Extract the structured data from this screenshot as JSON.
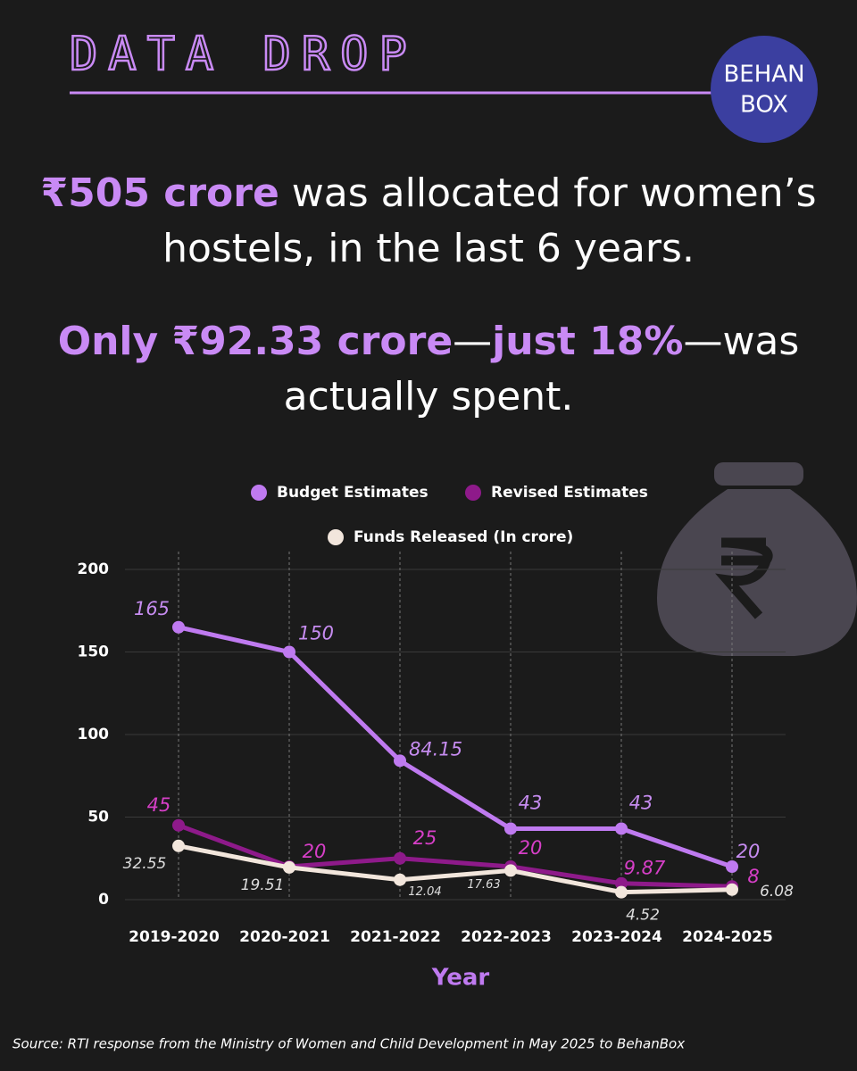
{
  "header": {
    "title": "DATA DROP",
    "logo": [
      "BEHAN",
      "BOX"
    ]
  },
  "headline": [
    [
      {
        "text": "₹505 crore",
        "highlight": true
      },
      {
        "text": " was allocated for women’s hostels, in the last 6 years.",
        "highlight": false
      }
    ],
    [
      {
        "text": "Only ₹92.33 crore",
        "highlight": true
      },
      {
        "text": "—",
        "highlight": false
      },
      {
        "text": "just 18%",
        "highlight": true
      },
      {
        "text": "—was actually spent.",
        "highlight": false
      }
    ]
  ],
  "chart_data": {
    "type": "line",
    "categories": [
      "2019-2020",
      "2020-2021",
      "2021-2022",
      "2022-2023",
      "2023-2024",
      "2024-2025"
    ],
    "series": [
      {
        "name": "Budget Estimates",
        "color": "#bf7af0",
        "values": [
          165,
          150,
          84.15,
          43,
          43,
          20
        ]
      },
      {
        "name": "Revised Estimates",
        "color": "#8e1a8a",
        "values": [
          45,
          20,
          25,
          20,
          9.87,
          8
        ]
      },
      {
        "name": "Funds Released (In crore)",
        "color": "#f2e6dc",
        "values": [
          32.55,
          19.51,
          12.04,
          17.63,
          4.52,
          6.08
        ]
      }
    ],
    "xlabel": "Year",
    "ylim": [
      0,
      200
    ],
    "yticks": [
      0,
      50,
      100,
      150,
      200
    ],
    "grid": true
  },
  "source": "Source: RTI response from the Ministry of Women and Child Development in May 2025 to BehanBox"
}
